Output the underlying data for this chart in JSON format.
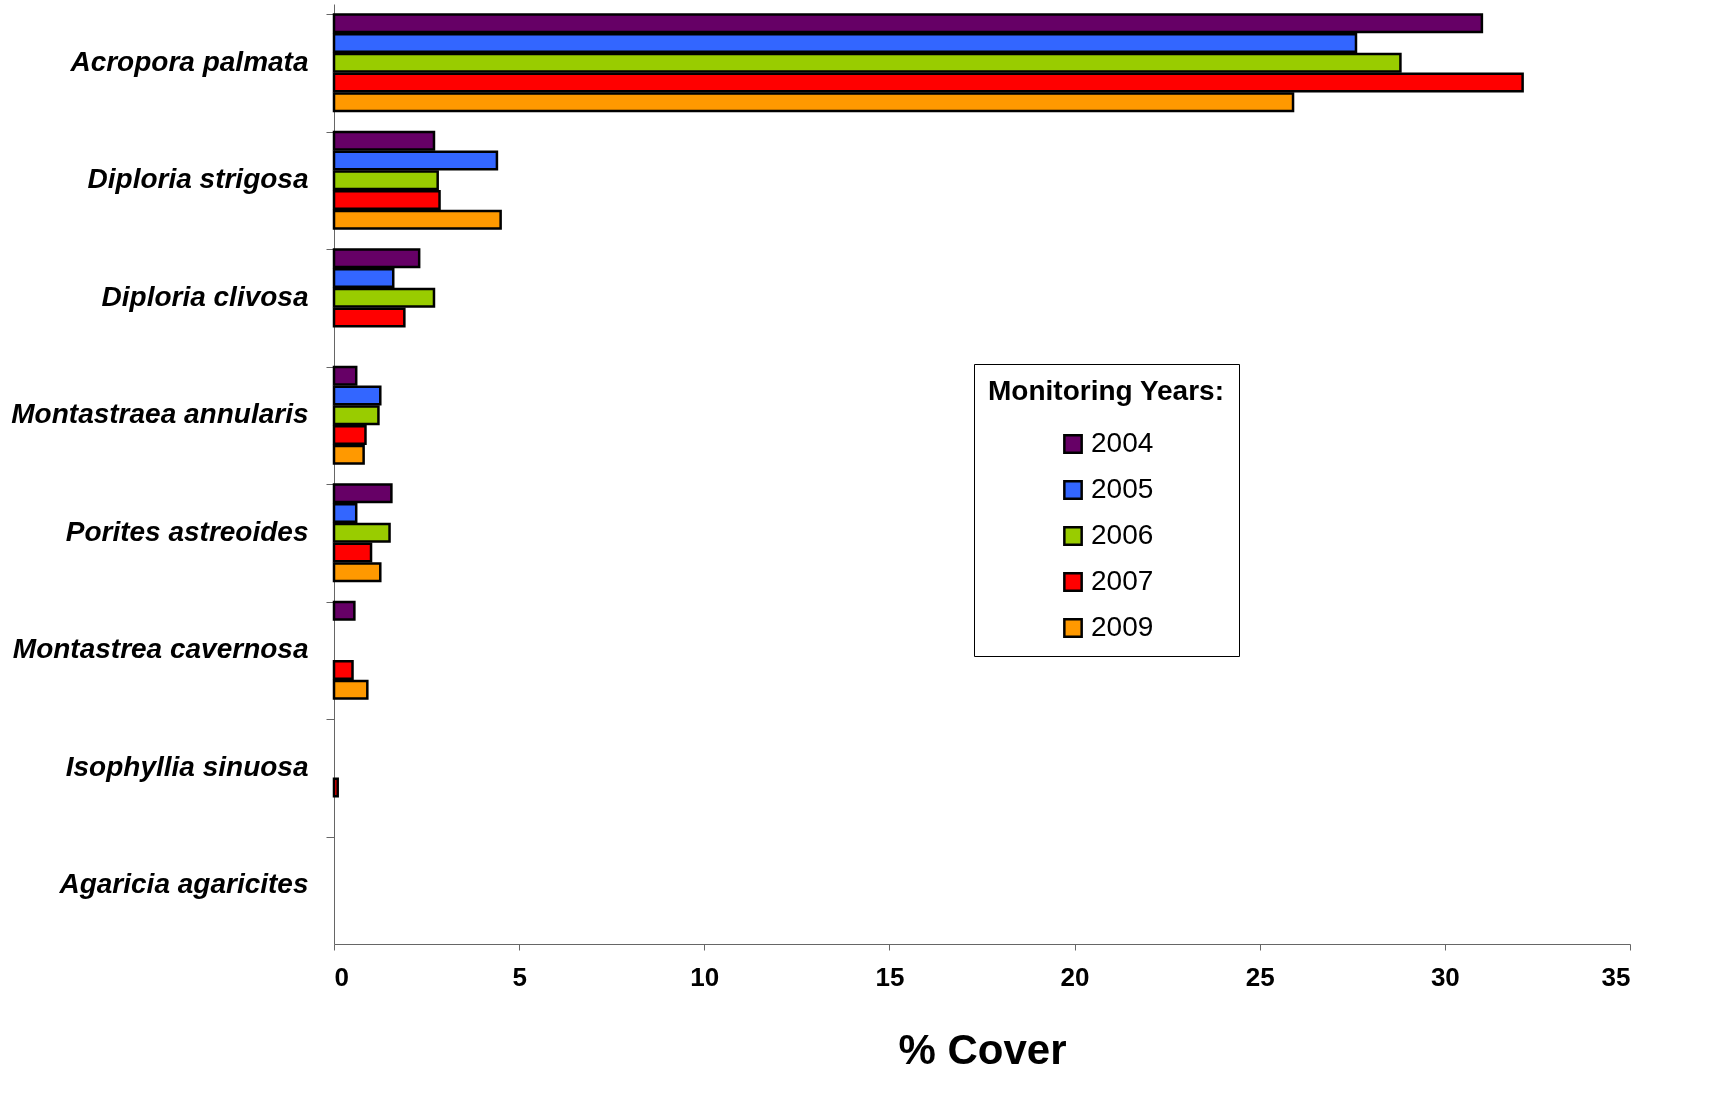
{
  "chart_data": {
    "type": "bar",
    "orientation": "horizontal",
    "xlabel": "% Cover",
    "legend_title": "Monitoring Years:",
    "legend": "right",
    "grid": false,
    "categories": [
      "Acropora palmata",
      "Diploria strigosa",
      "Diploria clivosa",
      "Montastraea annularis",
      "Porites astreoides",
      "Montastrea cavernosa",
      "Isophyllia sinuosa",
      "Agaricia agaricites"
    ],
    "xlim": [
      0,
      35
    ],
    "xticks": [
      0,
      5,
      10,
      15,
      20,
      25,
      30,
      35
    ],
    "series": [
      {
        "name": "2004",
        "color": "#660066",
        "values": [
          31.0,
          2.7,
          2.3,
          0.6,
          1.55,
          0.55,
          null,
          null
        ]
      },
      {
        "name": "2005",
        "color": "#3366ff",
        "values": [
          27.6,
          4.4,
          1.6,
          1.25,
          0.6,
          null,
          null,
          null
        ]
      },
      {
        "name": "2006",
        "color": "#99cc00",
        "values": [
          28.8,
          2.8,
          2.7,
          1.2,
          1.5,
          null,
          null,
          null
        ]
      },
      {
        "name": "2007",
        "color": "#ff0000",
        "values": [
          32.1,
          2.85,
          1.9,
          0.85,
          1.0,
          0.5,
          0.1,
          null
        ]
      },
      {
        "name": "2009",
        "color": "#ff9900",
        "values": [
          25.9,
          4.5,
          null,
          0.8,
          1.25,
          0.9,
          null,
          null
        ]
      }
    ]
  }
}
